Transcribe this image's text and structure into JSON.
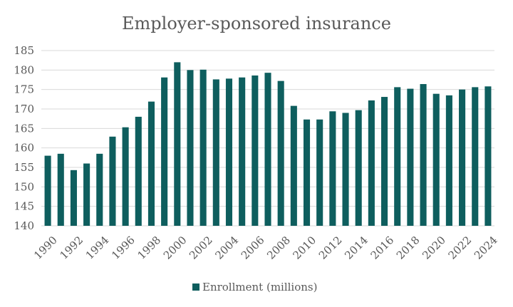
{
  "chart_data": {
    "type": "bar",
    "title": "Employer-sponsored insurance",
    "xlabel": "",
    "ylabel": "",
    "ylim": [
      140,
      185
    ],
    "y_ticks": [
      140,
      145,
      150,
      155,
      160,
      165,
      170,
      175,
      180,
      185
    ],
    "x_tick_labels": [
      "1990",
      "1992",
      "1994",
      "1996",
      "1998",
      "2000",
      "2002",
      "2004",
      "2006",
      "2008",
      "2010",
      "2012",
      "2014",
      "2016",
      "2018",
      "2020",
      "2022",
      "2024"
    ],
    "categories": [
      "1990",
      "1991",
      "1992",
      "1993",
      "1994",
      "1995",
      "1996",
      "1997",
      "1998",
      "1999",
      "2000",
      "2001",
      "2002",
      "2003",
      "2004",
      "2005",
      "2006",
      "2007",
      "2008",
      "2009",
      "2010",
      "2011",
      "2012",
      "2013",
      "2014",
      "2015",
      "2016",
      "2017",
      "2018",
      "2019",
      "2020",
      "2021",
      "2022",
      "2023",
      "2024"
    ],
    "series": [
      {
        "name": "Enrollment (millions)",
        "color": "#0e5e5e",
        "values": [
          158.0,
          158.5,
          154.3,
          156.0,
          158.5,
          162.9,
          165.3,
          168.0,
          171.9,
          178.1,
          182.0,
          180.0,
          180.1,
          177.6,
          177.8,
          178.1,
          178.6,
          179.3,
          177.2,
          170.8,
          167.3,
          167.3,
          169.4,
          169.0,
          169.7,
          172.2,
          173.1,
          175.6,
          175.2,
          176.4,
          173.9,
          173.5,
          175.0,
          175.6,
          175.8
        ]
      }
    ],
    "grid": true,
    "legend_position": "bottom"
  }
}
